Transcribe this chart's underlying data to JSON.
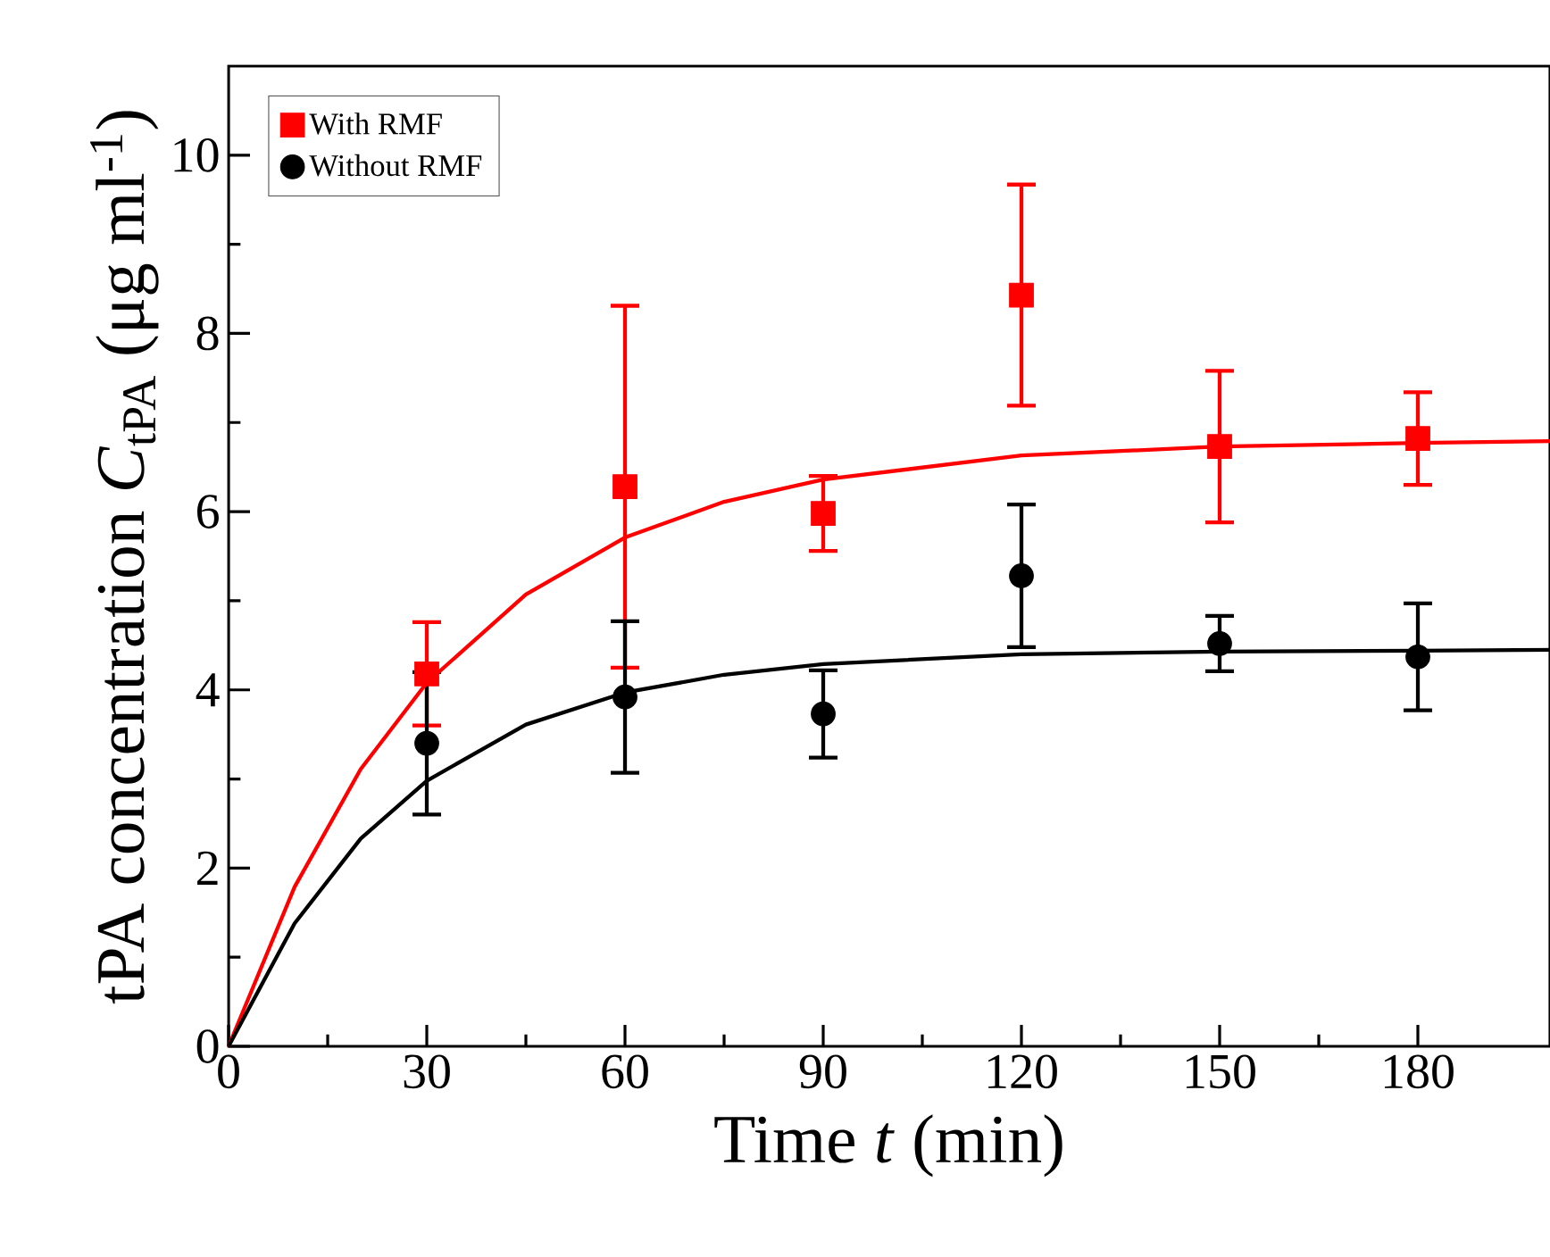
{
  "chart_data": {
    "type": "scatter",
    "xlabel": "Time *t* (min)",
    "ylabel": "tPA concentration *C*$_{tPA}$ (μg ml$^{-1}$)",
    "x": [
      30,
      60,
      90,
      120,
      150,
      180
    ],
    "series": [
      {
        "name": "With RMF",
        "color": "#ff0000",
        "marker": "square",
        "values": [
          4.18,
          6.28,
          5.98,
          8.43,
          6.73,
          6.82
        ],
        "errors": [
          0.58,
          2.03,
          0.42,
          1.24,
          0.85,
          0.52
        ]
      },
      {
        "name": "Without RMF",
        "color": "#000000",
        "marker": "circle",
        "values": [
          3.4,
          3.92,
          3.73,
          5.28,
          4.52,
          4.37
        ],
        "errors": [
          0.8,
          0.85,
          0.49,
          0.8,
          0.31,
          0.6
        ]
      },
      {
        "type": "line",
        "color": "#ff0000",
        "marker": "none",
        "x": [
          0,
          10,
          20,
          30,
          45,
          60,
          75,
          90,
          120,
          150,
          180,
          200
        ],
        "values": [
          0,
          1.79,
          3.11,
          4.08,
          5.07,
          5.71,
          6.11,
          6.36,
          6.63,
          6.73,
          6.77,
          6.79
        ]
      },
      {
        "type": "line",
        "color": "#000000",
        "marker": "none",
        "x": [
          0,
          10,
          20,
          30,
          45,
          60,
          75,
          90,
          120,
          150,
          180,
          200
        ],
        "values": [
          0,
          1.38,
          2.33,
          2.98,
          3.61,
          3.97,
          4.17,
          4.29,
          4.4,
          4.43,
          4.44,
          4.45
        ]
      }
    ],
    "xlim": [
      0,
      200
    ],
    "ylim": [
      0,
      11
    ],
    "xticks": [
      0,
      30,
      60,
      90,
      120,
      150,
      180
    ],
    "yticks": [
      0,
      2,
      4,
      6,
      8,
      10
    ],
    "legend": "top left",
    "grid": false
  }
}
